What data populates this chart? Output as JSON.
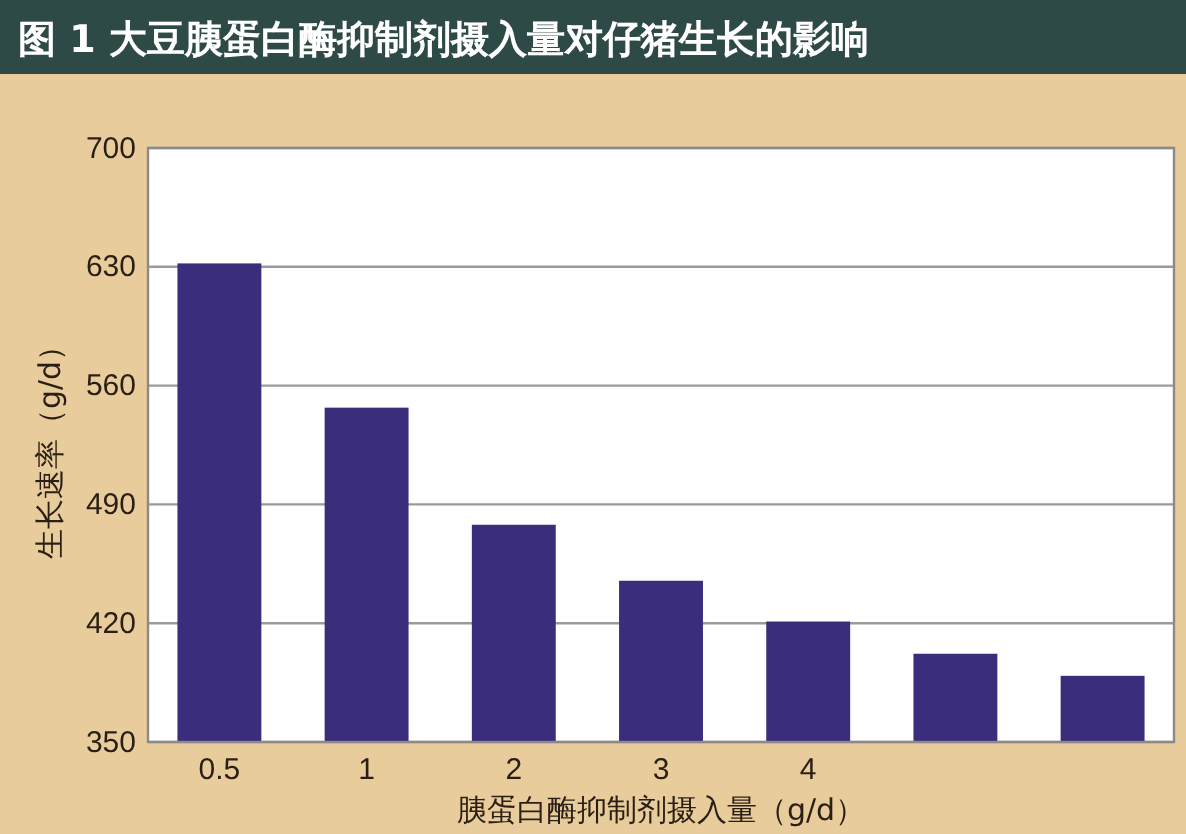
{
  "chart_data": {
    "type": "bar",
    "title": "图 1 大豆胰蛋白酶抑制剂摄入量对仔猪生长的影响",
    "xlabel": "胰蛋白酶抑制剂摄入量（g/d）",
    "ylabel": "生长速率（g/d）",
    "categories": [
      "0.5",
      "1",
      "2",
      "3",
      "4",
      null,
      null
    ],
    "values": [
      632,
      547,
      478,
      445,
      421,
      402,
      389
    ],
    "color": "#3a2d7c",
    "ylim": [
      350,
      700
    ],
    "yticks": [
      350,
      420,
      490,
      560,
      630,
      700
    ],
    "grid": "y"
  }
}
